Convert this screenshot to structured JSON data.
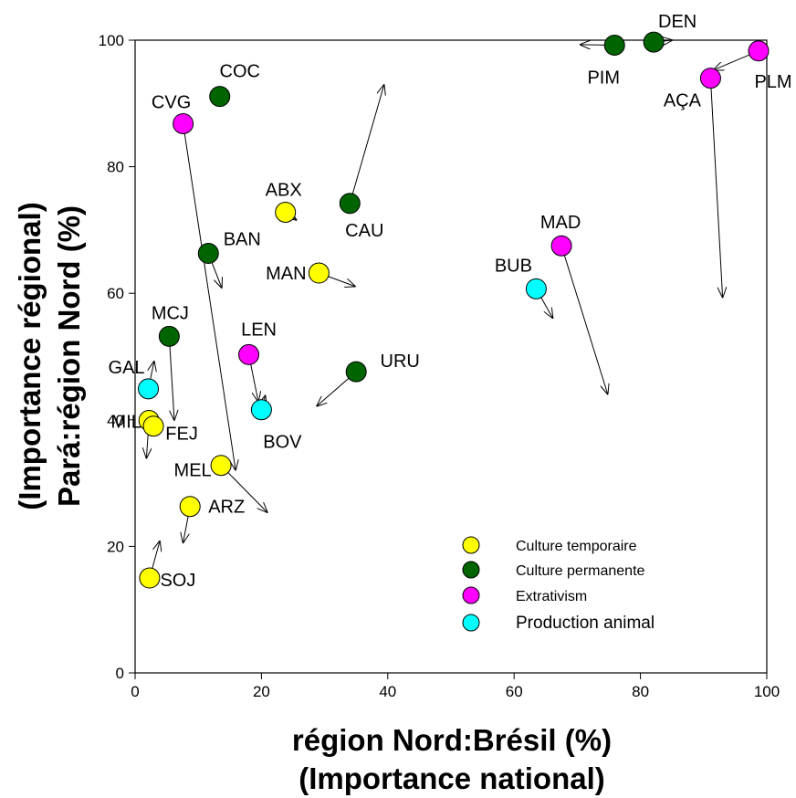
{
  "chart_data": {
    "type": "scatter",
    "xlabel_lines": [
      "région Nord:Brésil (%)",
      "(Importance national)"
    ],
    "ylabel_lines": [
      "(Importance régional)",
      "Pará:région Nord (%)"
    ],
    "xlim": [
      0,
      100
    ],
    "ylim": [
      0,
      100
    ],
    "xticks": [
      0,
      20,
      40,
      60,
      80,
      100
    ],
    "yticks": [
      0,
      20,
      40,
      60,
      80,
      100
    ],
    "grid": false,
    "legend_position": "bottom-right",
    "categories": [
      {
        "name": "Culture temporaire",
        "color": "#ffff00"
      },
      {
        "name": "Culture permanente",
        "color": "#006400"
      },
      {
        "name": "Extrativism",
        "color": "#ff00ff"
      },
      {
        "name": "Production animal",
        "color": "#00ffff"
      }
    ],
    "points": [
      {
        "label": "DEN",
        "category": "Culture permanente",
        "x": 82.1,
        "y": 99.7,
        "arrow_to": [
          85,
          100
        ]
      },
      {
        "label": "PIM",
        "category": "Culture permanente",
        "x": 75.9,
        "y": 99.2,
        "arrow_to": [
          70.5,
          99.3
        ]
      },
      {
        "label": "PLM",
        "category": "Extrativism",
        "x": 98.7,
        "y": 98.3,
        "arrow_to": [
          91.6,
          95.3
        ]
      },
      {
        "label": "AÇA",
        "category": "Extrativism",
        "x": 91.1,
        "y": 94.0,
        "arrow_to": [
          93,
          59.4
        ]
      },
      {
        "label": "COC",
        "category": "Culture permanente",
        "x": 13.4,
        "y": 91.1,
        "arrow_to": null
      },
      {
        "label": "CVG",
        "category": "Extrativism",
        "x": 7.6,
        "y": 86.8,
        "arrow_to": [
          15.9,
          32.1
        ]
      },
      {
        "label": "CAU",
        "category": "Culture permanente",
        "x": 34.0,
        "y": 74.2,
        "arrow_to": [
          39.4,
          92.9
        ]
      },
      {
        "label": "ABX",
        "category": "Culture temporaire",
        "x": 23.8,
        "y": 72.8,
        "arrow_to": [
          25.5,
          71.6
        ]
      },
      {
        "label": "MAD",
        "category": "Extrativism",
        "x": 67.5,
        "y": 67.5,
        "arrow_to": [
          74.8,
          44.1
        ]
      },
      {
        "label": "BAN",
        "category": "Culture permanente",
        "x": 11.6,
        "y": 66.3,
        "arrow_to": [
          13.7,
          60.9
        ]
      },
      {
        "label": "MAN",
        "category": "Culture temporaire",
        "x": 29.1,
        "y": 63.2,
        "arrow_to": [
          34.8,
          61.1
        ]
      },
      {
        "label": "BUB",
        "category": "Production animal",
        "x": 63.5,
        "y": 60.7,
        "arrow_to": [
          66.1,
          56.1
        ]
      },
      {
        "label": "MCJ",
        "category": "Culture permanente",
        "x": 5.4,
        "y": 53.2,
        "arrow_to": [
          6.2,
          40.0
        ]
      },
      {
        "label": "LEN",
        "category": "Extrativism",
        "x": 18.0,
        "y": 50.3,
        "arrow_to": [
          19.5,
          42.9
        ]
      },
      {
        "label": "URU",
        "category": "Culture permanente",
        "x": 35.0,
        "y": 47.6,
        "arrow_to": [
          28.8,
          42.2
        ]
      },
      {
        "label": "GAL",
        "category": "Production animal",
        "x": 2.1,
        "y": 44.9,
        "arrow_to": [
          3.0,
          49.2
        ]
      },
      {
        "label": "BOV",
        "category": "Production animal",
        "x": 20.0,
        "y": 41.6,
        "arrow_to": [
          20.6,
          43.8
        ]
      },
      {
        "label": "MIL",
        "category": "Culture temporaire",
        "x": 2.2,
        "y": 39.9,
        "arrow_to": [
          1.8,
          34.0
        ]
      },
      {
        "label": "FEJ",
        "category": "Culture temporaire",
        "x": 2.9,
        "y": 39.0,
        "arrow_to": null
      },
      {
        "label": "MEL",
        "category": "Culture temporaire",
        "x": 13.6,
        "y": 32.8,
        "arrow_to": [
          20.9,
          25.4
        ]
      },
      {
        "label": "ARZ",
        "category": "Culture temporaire",
        "x": 8.7,
        "y": 26.3,
        "arrow_to": [
          7.6,
          20.6
        ]
      },
      {
        "label": "SOJ",
        "category": "Culture temporaire",
        "x": 2.3,
        "y": 15.0,
        "arrow_to": [
          3.9,
          20.8
        ]
      }
    ]
  }
}
